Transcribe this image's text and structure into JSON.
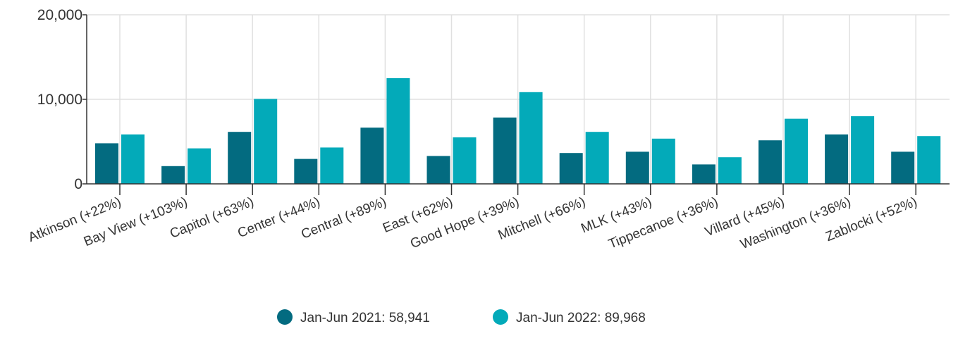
{
  "chart_data": {
    "type": "bar",
    "categories": [
      "Atkinson (+22%)",
      "Bay View (+103%)",
      "Capitol (+63%)",
      "Center (+44%)",
      "Central (+89%)",
      "East (+62%)",
      "Good Hope (+39%)",
      "Mitchell (+66%)",
      "MLK (+43%)",
      "Tippecanoe (+36%)",
      "Villard (+45%)",
      "Washington (+36%)",
      "Zablocki (+52%)"
    ],
    "series": [
      {
        "name": "Jan-Jun 2021",
        "color": "#036b80",
        "values": [
          4800,
          2100,
          6150,
          2950,
          6650,
          3300,
          7850,
          3650,
          3800,
          2300,
          5150,
          5850,
          3800
        ]
      },
      {
        "name": "Jan-Jun 2022",
        "color": "#03aab9",
        "values": [
          5850,
          4200,
          10050,
          4300,
          12500,
          5500,
          10850,
          6150,
          5350,
          3150,
          7700,
          8000,
          5650
        ]
      }
    ],
    "legend_labels": [
      "Jan-Jun 2021: 58,941",
      "Jan-Jun 2022: 89,968"
    ],
    "y_ticks": [
      "0",
      "10,000",
      "20,000"
    ],
    "y_tick_values": [
      0,
      10000,
      20000
    ],
    "ylim": [
      0,
      20000
    ],
    "title": "",
    "xlabel": "",
    "ylabel": "",
    "grid": true,
    "legend_position": "bottom-center"
  }
}
